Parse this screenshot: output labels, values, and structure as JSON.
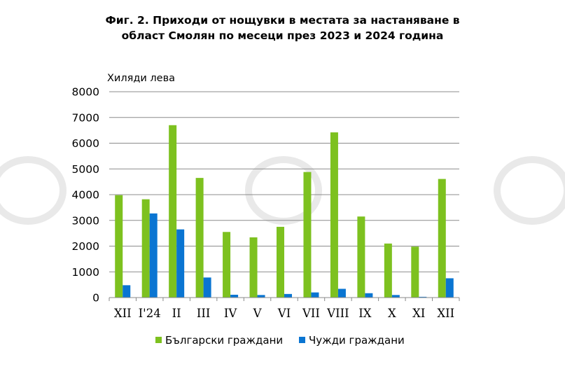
{
  "chart_data": {
    "type": "bar",
    "title_line1": "Фиг. 2. Приходи от нощувки в местата за настаняване в",
    "title_line2": "област Смолян по месеци през 2023 и 2024 година",
    "ylabel": "Хиляди лева",
    "xlabel": "",
    "ylim": [
      0,
      8000
    ],
    "yticks": [
      0,
      1000,
      2000,
      3000,
      4000,
      5000,
      6000,
      7000,
      8000
    ],
    "grid": true,
    "legend_position": "bottom",
    "categories": [
      "XII",
      "I'24",
      "II",
      "III",
      "IV",
      "V",
      "VI",
      "VII",
      "VIII",
      "IX",
      "X",
      "XI",
      "XII"
    ],
    "series": [
      {
        "name": "Български граждани",
        "color": "#7dc11f",
        "values": [
          3980,
          3820,
          6700,
          4650,
          2550,
          2340,
          2750,
          4880,
          6420,
          3150,
          2100,
          1980,
          4610
        ]
      },
      {
        "name": "Чужди граждани",
        "color": "#0a75d2",
        "values": [
          480,
          3270,
          2650,
          780,
          110,
          100,
          140,
          200,
          340,
          170,
          100,
          30,
          750
        ]
      }
    ]
  }
}
